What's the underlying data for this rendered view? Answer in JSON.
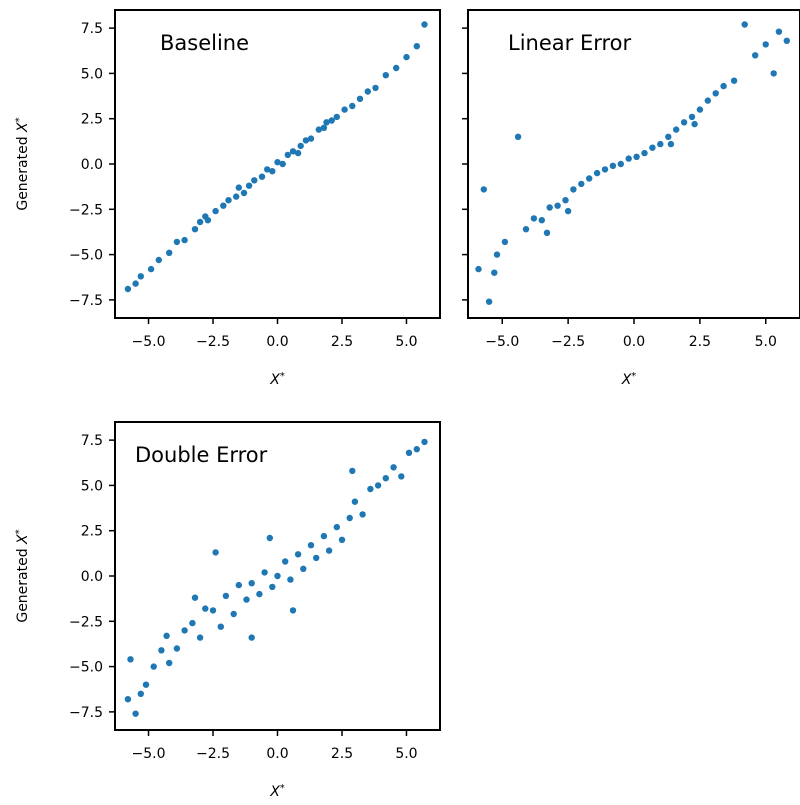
{
  "figure": {
    "panels": [
      {
        "title": "Baseline",
        "xlabel": "X*",
        "ylabel": "Generated X*"
      },
      {
        "title": "Linear Error",
        "xlabel": "X*",
        "ylabel": ""
      },
      {
        "title": "Double Error",
        "xlabel": "X*",
        "ylabel": "Generated X*"
      }
    ]
  },
  "colors": {
    "points": "#1f77b4",
    "axes": "#000000",
    "background": "#ffffff"
  },
  "chart_data": [
    {
      "type": "scatter",
      "title": "Baseline",
      "xlabel": "X*",
      "ylabel": "Generated X*",
      "xlim": [
        -6.3,
        6.3
      ],
      "ylim": [
        -8.5,
        8.5
      ],
      "xticks": [
        -5.0,
        -2.5,
        0.0,
        2.5,
        5.0
      ],
      "xtick_labels": [
        "−5.0",
        "−2.5",
        "0.0",
        "2.5",
        "5.0"
      ],
      "yticks": [
        -7.5,
        -5.0,
        -2.5,
        0.0,
        2.5,
        5.0,
        7.5
      ],
      "ytick_labels": [
        "−7.5",
        "−5.0",
        "−2.5",
        "0.0",
        "2.5",
        "5.0",
        "7.5"
      ],
      "grid": false,
      "points": [
        [
          -5.8,
          -6.9
        ],
        [
          -5.5,
          -6.6
        ],
        [
          -5.3,
          -6.2
        ],
        [
          -4.9,
          -5.8
        ],
        [
          -4.6,
          -5.3
        ],
        [
          -4.2,
          -4.9
        ],
        [
          -3.9,
          -4.3
        ],
        [
          -3.6,
          -4.2
        ],
        [
          -3.2,
          -3.6
        ],
        [
          -3.0,
          -3.2
        ],
        [
          -2.7,
          -3.1
        ],
        [
          -2.4,
          -2.6
        ],
        [
          -2.1,
          -2.3
        ],
        [
          -1.9,
          -2.0
        ],
        [
          -1.6,
          -1.8
        ],
        [
          -1.3,
          -1.6
        ],
        [
          -1.1,
          -1.2
        ],
        [
          -0.9,
          -0.9
        ],
        [
          -0.6,
          -0.7
        ],
        [
          -0.4,
          -0.3
        ],
        [
          -0.2,
          -0.4
        ],
        [
          0.0,
          0.1
        ],
        [
          0.2,
          0.0
        ],
        [
          0.4,
          0.5
        ],
        [
          0.6,
          0.7
        ],
        [
          0.9,
          1.0
        ],
        [
          1.1,
          1.3
        ],
        [
          1.3,
          1.4
        ],
        [
          1.6,
          1.9
        ],
        [
          1.8,
          2.0
        ],
        [
          2.1,
          2.4
        ],
        [
          2.3,
          2.6
        ],
        [
          2.6,
          3.0
        ],
        [
          2.9,
          3.2
        ],
        [
          3.2,
          3.6
        ],
        [
          3.5,
          4.0
        ],
        [
          3.8,
          4.2
        ],
        [
          4.2,
          4.9
        ],
        [
          4.6,
          5.3
        ],
        [
          5.0,
          5.9
        ],
        [
          5.4,
          6.5
        ],
        [
          5.7,
          7.7
        ],
        [
          -2.8,
          -2.9
        ],
        [
          -1.5,
          -1.3
        ],
        [
          0.8,
          0.6
        ],
        [
          1.9,
          2.3
        ]
      ]
    },
    {
      "type": "scatter",
      "title": "Linear Error",
      "xlabel": "X*",
      "ylabel": "",
      "xlim": [
        -6.3,
        6.3
      ],
      "ylim": [
        -8.5,
        8.5
      ],
      "xticks": [
        -5.0,
        -2.5,
        0.0,
        2.5,
        5.0
      ],
      "xtick_labels": [
        "−5.0",
        "−2.5",
        "0.0",
        "2.5",
        "5.0"
      ],
      "yticks": [
        -7.5,
        -5.0,
        -2.5,
        0.0,
        2.5,
        5.0,
        7.5
      ],
      "ytick_labels": [],
      "grid": false,
      "points": [
        [
          -5.9,
          -5.8
        ],
        [
          -5.5,
          -7.6
        ],
        [
          -5.3,
          -6.0
        ],
        [
          -5.2,
          -5.0
        ],
        [
          -4.9,
          -4.3
        ],
        [
          -5.7,
          -1.4
        ],
        [
          -4.4,
          1.5
        ],
        [
          -4.1,
          -3.6
        ],
        [
          -3.8,
          -3.0
        ],
        [
          -3.5,
          -3.1
        ],
        [
          -3.2,
          -2.4
        ],
        [
          -2.9,
          -2.3
        ],
        [
          -2.6,
          -2.0
        ],
        [
          -2.3,
          -1.4
        ],
        [
          -2.0,
          -1.1
        ],
        [
          -1.7,
          -0.8
        ],
        [
          -1.4,
          -0.5
        ],
        [
          -1.1,
          -0.3
        ],
        [
          -0.8,
          -0.1
        ],
        [
          -0.5,
          0.0
        ],
        [
          -0.2,
          0.3
        ],
        [
          0.1,
          0.4
        ],
        [
          0.4,
          0.6
        ],
        [
          0.7,
          0.9
        ],
        [
          1.0,
          1.1
        ],
        [
          1.3,
          1.5
        ],
        [
          1.6,
          1.9
        ],
        [
          1.9,
          2.3
        ],
        [
          2.2,
          2.6
        ],
        [
          2.5,
          3.0
        ],
        [
          2.8,
          3.5
        ],
        [
          3.1,
          3.9
        ],
        [
          3.4,
          4.3
        ],
        [
          3.8,
          4.6
        ],
        [
          4.2,
          7.7
        ],
        [
          4.6,
          6.0
        ],
        [
          5.0,
          6.6
        ],
        [
          5.3,
          5.0
        ],
        [
          5.5,
          7.3
        ],
        [
          5.8,
          6.8
        ],
        [
          -3.3,
          -3.8
        ],
        [
          -2.5,
          -2.6
        ],
        [
          1.4,
          1.1
        ],
        [
          2.3,
          2.2
        ]
      ]
    },
    {
      "type": "scatter",
      "title": "Double Error",
      "xlabel": "X*",
      "ylabel": "Generated X*",
      "xlim": [
        -6.3,
        6.3
      ],
      "ylim": [
        -8.5,
        8.5
      ],
      "xticks": [
        -5.0,
        -2.5,
        0.0,
        2.5,
        5.0
      ],
      "xtick_labels": [
        "−5.0",
        "−2.5",
        "0.0",
        "2.5",
        "5.0"
      ],
      "yticks": [
        -7.5,
        -5.0,
        -2.5,
        0.0,
        2.5,
        5.0,
        7.5
      ],
      "ytick_labels": [
        "−7.5",
        "−5.0",
        "−2.5",
        "0.0",
        "2.5",
        "5.0",
        "7.5"
      ],
      "grid": false,
      "points": [
        [
          -5.7,
          -4.6
        ],
        [
          -5.5,
          -7.6
        ],
        [
          -5.3,
          -6.5
        ],
        [
          -5.1,
          -6.0
        ],
        [
          -5.8,
          -6.8
        ],
        [
          -4.8,
          -5.0
        ],
        [
          -4.5,
          -4.1
        ],
        [
          -4.2,
          -4.8
        ],
        [
          -4.3,
          -3.3
        ],
        [
          -3.9,
          -4.0
        ],
        [
          -3.6,
          -3.0
        ],
        [
          -3.3,
          -2.6
        ],
        [
          -3.0,
          -3.4
        ],
        [
          -2.8,
          -1.8
        ],
        [
          -2.5,
          -1.9
        ],
        [
          -2.2,
          -2.8
        ],
        [
          -2.0,
          -1.1
        ],
        [
          -1.7,
          -2.1
        ],
        [
          -1.5,
          -0.5
        ],
        [
          -1.2,
          -1.3
        ],
        [
          -1.0,
          -0.4
        ],
        [
          -0.7,
          -1.0
        ],
        [
          -0.5,
          0.2
        ],
        [
          -0.2,
          -0.6
        ],
        [
          0.0,
          0.0
        ],
        [
          0.3,
          0.8
        ],
        [
          0.5,
          -0.2
        ],
        [
          0.8,
          1.2
        ],
        [
          1.0,
          0.4
        ],
        [
          1.3,
          1.7
        ],
        [
          1.5,
          1.0
        ],
        [
          1.8,
          2.2
        ],
        [
          2.0,
          1.4
        ],
        [
          2.3,
          2.7
        ],
        [
          2.5,
          2.0
        ],
        [
          2.8,
          3.2
        ],
        [
          3.0,
          4.1
        ],
        [
          3.3,
          3.4
        ],
        [
          3.6,
          4.8
        ],
        [
          3.9,
          5.0
        ],
        [
          4.2,
          5.4
        ],
        [
          4.5,
          6.0
        ],
        [
          4.8,
          5.5
        ],
        [
          5.1,
          6.8
        ],
        [
          5.4,
          7.0
        ],
        [
          5.7,
          7.4
        ],
        [
          -2.4,
          1.3
        ],
        [
          -0.3,
          2.1
        ],
        [
          0.6,
          -1.9
        ],
        [
          -1.0,
          -3.4
        ],
        [
          2.9,
          5.8
        ],
        [
          -3.2,
          -1.2
        ]
      ]
    }
  ]
}
